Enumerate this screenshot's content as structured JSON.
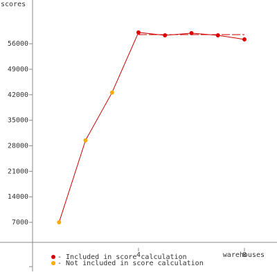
{
  "chart_data": {
    "type": "line",
    "y_label": "scores",
    "x_label": "warehouses",
    "x": [
      1,
      2,
      3,
      4,
      5,
      6,
      7,
      8
    ],
    "values": [
      7000,
      29500,
      42600,
      59100,
      58300,
      58900,
      58300,
      57200
    ],
    "line_color": "#cc0000",
    "point_group": [
      1,
      1,
      1,
      0,
      0,
      0,
      0,
      0
    ],
    "groups": [
      {
        "name": "- Included in score calculation",
        "color": "#dd0000"
      },
      {
        "name": "- Not included in score calculation",
        "color": "#ffaa00"
      }
    ],
    "reference_line": 58500,
    "xlim": [
      -1.23,
      9.23
    ],
    "xticks": [
      4,
      8
    ],
    "ylim": [
      -8000,
      68000
    ],
    "yticks": [
      7000,
      14000,
      21000,
      28000,
      35000,
      42000,
      49000,
      56000
    ]
  }
}
